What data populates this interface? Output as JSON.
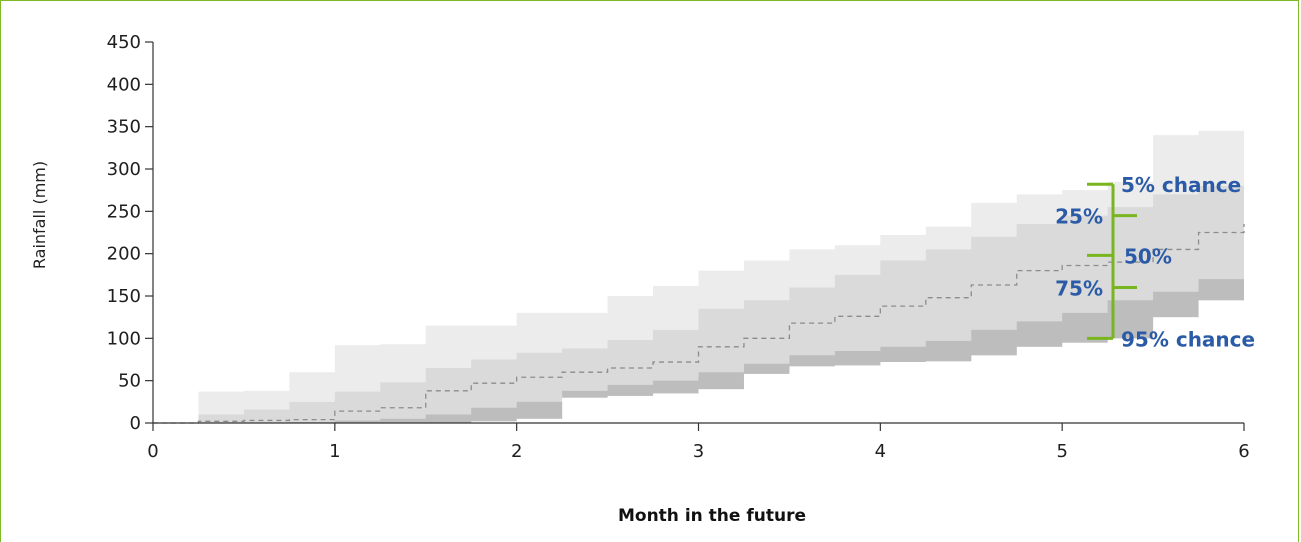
{
  "chart_data": {
    "type": "area",
    "title": "",
    "xlabel": "Month in the future",
    "ylabel": "Rainfall (mm)",
    "xlim": [
      0,
      6
    ],
    "ylim": [
      0,
      450
    ],
    "x_ticks": [
      "0",
      "1",
      "2",
      "3",
      "4",
      "5",
      "6"
    ],
    "y_ticks": [
      "0",
      "50",
      "100",
      "150",
      "200",
      "250",
      "300",
      "350",
      "400",
      "450"
    ],
    "grid": false,
    "legend": "none",
    "colors": {
      "band_5_95": "#ececec",
      "band_25_75": "#dadada",
      "band_75_95": "#bdbdbd",
      "median_line": "#8c8c8c",
      "bracket": "#78b51e",
      "annotation_text": "#2b5ba6",
      "frame": "#7dba24"
    },
    "x": [
      0,
      0.25,
      0.5,
      0.75,
      1,
      1.25,
      1.5,
      1.75,
      2,
      2.25,
      2.5,
      2.75,
      3,
      3.25,
      3.5,
      3.75,
      4,
      4.25,
      4.5,
      4.75,
      5,
      5.25,
      5.5,
      5.75,
      6
    ],
    "series": [
      {
        "name": "5% chance",
        "values": [
          0,
          37,
          38,
          60,
          92,
          93,
          115,
          115,
          130,
          130,
          150,
          162,
          180,
          192,
          205,
          210,
          222,
          232,
          260,
          270,
          275,
          285,
          340,
          345,
          350
        ]
      },
      {
        "name": "25%",
        "values": [
          0,
          10,
          16,
          25,
          37,
          48,
          65,
          75,
          83,
          88,
          98,
          110,
          135,
          145,
          160,
          175,
          192,
          205,
          220,
          235,
          245,
          255,
          270,
          280,
          320
        ]
      },
      {
        "name": "50%",
        "values": [
          0,
          2,
          3,
          4,
          14,
          18,
          38,
          47,
          54,
          60,
          65,
          72,
          90,
          100,
          118,
          126,
          138,
          148,
          163,
          180,
          186,
          190,
          205,
          225,
          235
        ]
      },
      {
        "name": "75%",
        "values": [
          0,
          0,
          0,
          1,
          3,
          5,
          10,
          18,
          25,
          38,
          45,
          50,
          60,
          70,
          80,
          85,
          90,
          97,
          110,
          120,
          130,
          145,
          155,
          170,
          185
        ]
      },
      {
        "name": "95% chance",
        "values": [
          0,
          0,
          0,
          0,
          0,
          0,
          0,
          2,
          5,
          30,
          32,
          35,
          40,
          58,
          67,
          68,
          72,
          73,
          80,
          90,
          95,
          100,
          125,
          145,
          155
        ]
      }
    ],
    "annotations": {
      "p5": "5% chance",
      "p25": "25%",
      "p50": "50%",
      "p75": "75%",
      "p95": "95% chance"
    }
  }
}
